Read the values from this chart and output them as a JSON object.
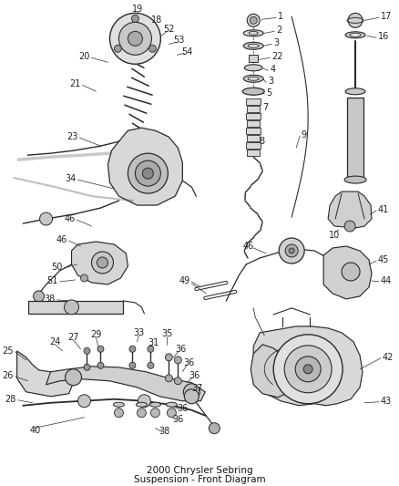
{
  "bg_color": "#ffffff",
  "line_color": "#2a2a2a",
  "label_color": "#222222",
  "label_fontsize": 7.0,
  "fig_width": 4.38,
  "fig_height": 5.33,
  "dpi": 100,
  "title_line1": "2000 Chrysler Sebring",
  "title_line2": "Suspension - Front Diagram"
}
